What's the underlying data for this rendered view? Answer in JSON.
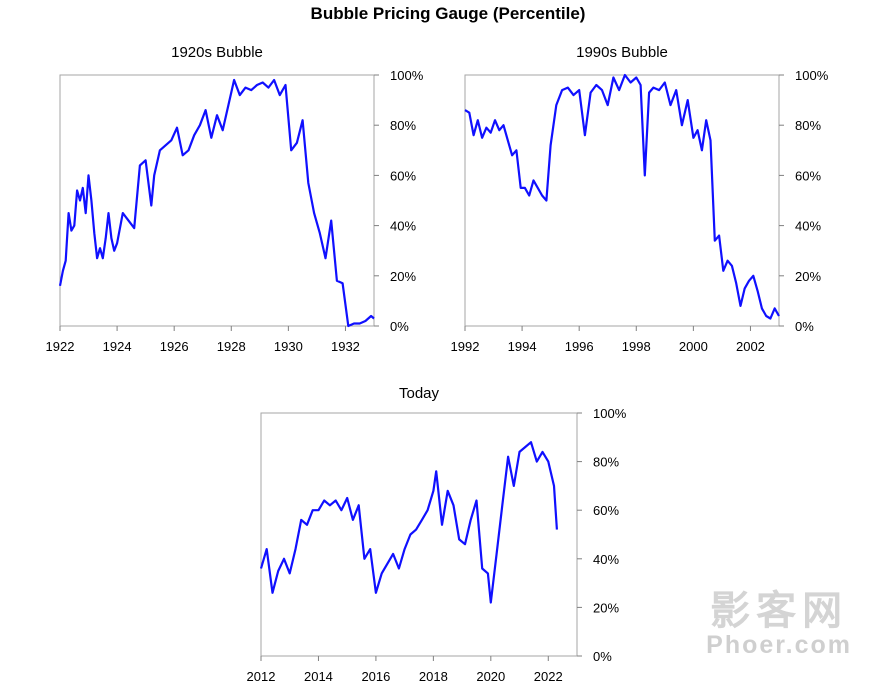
{
  "title": "Bubble Pricing Gauge (Percentile)",
  "watermark": {
    "line1": "影客网",
    "line2": "Phoer.com"
  },
  "colors": {
    "series": "#1010ff",
    "frame": "#a6a6a6"
  },
  "chart_data": [
    {
      "type": "line",
      "title": "1920s Bubble",
      "xlabel": "",
      "ylabel": "",
      "xlim": [
        1922,
        1933
      ],
      "ylim": [
        0,
        100
      ],
      "x_ticks": [
        "1922",
        "1924",
        "1926",
        "1928",
        "1930",
        "1932"
      ],
      "y_ticks": [
        "0%",
        "20%",
        "40%",
        "60%",
        "80%",
        "100%"
      ],
      "series": [
        {
          "name": "Percentile",
          "x": [
            1922.0,
            1922.1,
            1922.2,
            1922.3,
            1922.4,
            1922.5,
            1922.6,
            1922.7,
            1922.8,
            1922.9,
            1923.0,
            1923.1,
            1923.2,
            1923.3,
            1923.4,
            1923.5,
            1923.6,
            1923.7,
            1923.8,
            1923.9,
            1924.0,
            1924.2,
            1924.4,
            1924.6,
            1924.8,
            1925.0,
            1925.2,
            1925.3,
            1925.5,
            1925.7,
            1925.9,
            1926.1,
            1926.3,
            1926.5,
            1926.7,
            1926.9,
            1927.1,
            1927.3,
            1927.5,
            1927.7,
            1927.9,
            1928.1,
            1928.3,
            1928.5,
            1928.7,
            1928.9,
            1929.1,
            1929.3,
            1929.5,
            1929.7,
            1929.9,
            1930.1,
            1930.3,
            1930.5,
            1930.7,
            1930.9,
            1931.1,
            1931.3,
            1931.5,
            1931.7,
            1931.9,
            1932.1,
            1932.3,
            1932.5,
            1932.7,
            1932.9,
            1933.0
          ],
          "y": [
            16,
            22,
            26,
            45,
            38,
            40,
            54,
            50,
            55,
            45,
            60,
            50,
            37,
            27,
            31,
            27,
            35,
            45,
            35,
            30,
            33,
            45,
            42,
            39,
            64,
            66,
            48,
            60,
            70,
            72,
            74,
            79,
            68,
            70,
            76,
            80,
            86,
            75,
            84,
            78,
            88,
            98,
            92,
            95,
            94,
            96,
            97,
            95,
            98,
            92,
            96,
            70,
            73,
            82,
            57,
            45,
            37,
            27,
            42,
            18,
            17,
            0,
            1,
            1,
            2,
            4,
            3
          ]
        }
      ]
    },
    {
      "type": "line",
      "title": "1990s Bubble",
      "xlabel": "",
      "ylabel": "",
      "xlim": [
        1992,
        2003
      ],
      "ylim": [
        0,
        100
      ],
      "x_ticks": [
        "1992",
        "1994",
        "1996",
        "1998",
        "2000",
        "2002"
      ],
      "y_ticks": [
        "0%",
        "20%",
        "40%",
        "60%",
        "80%",
        "100%"
      ],
      "series": [
        {
          "name": "Percentile",
          "x": [
            1992.0,
            1992.15,
            1992.3,
            1992.45,
            1992.6,
            1992.75,
            1992.9,
            1993.05,
            1993.2,
            1993.35,
            1993.5,
            1993.65,
            1993.8,
            1993.95,
            1994.1,
            1994.25,
            1994.4,
            1994.55,
            1994.7,
            1994.85,
            1995.0,
            1995.2,
            1995.4,
            1995.6,
            1995.8,
            1996.0,
            1996.2,
            1996.4,
            1996.6,
            1996.8,
            1997.0,
            1997.2,
            1997.4,
            1997.6,
            1997.8,
            1998.0,
            1998.15,
            1998.3,
            1998.45,
            1998.6,
            1998.8,
            1999.0,
            1999.2,
            1999.4,
            1999.6,
            1999.8,
            2000.0,
            2000.15,
            2000.3,
            2000.45,
            2000.6,
            2000.75,
            2000.9,
            2001.05,
            2001.2,
            2001.35,
            2001.5,
            2001.65,
            2001.8,
            2001.95,
            2002.1,
            2002.25,
            2002.4,
            2002.55,
            2002.7,
            2002.85,
            2003.0
          ],
          "y": [
            86,
            85,
            76,
            82,
            75,
            79,
            77,
            82,
            78,
            80,
            74,
            68,
            70,
            55,
            55,
            52,
            58,
            55,
            52,
            50,
            72,
            88,
            94,
            95,
            92,
            94,
            76,
            93,
            96,
            94,
            88,
            99,
            94,
            100,
            97,
            99,
            96,
            60,
            93,
            95,
            94,
            97,
            88,
            94,
            80,
            90,
            75,
            78,
            70,
            82,
            74,
            34,
            36,
            22,
            26,
            24,
            17,
            8,
            15,
            18,
            20,
            14,
            7,
            4,
            3,
            7,
            4
          ]
        }
      ]
    },
    {
      "type": "line",
      "title": "Today",
      "xlabel": "",
      "ylabel": "",
      "xlim": [
        2012,
        2023
      ],
      "ylim": [
        0,
        100
      ],
      "x_ticks": [
        "2012",
        "2014",
        "2016",
        "2018",
        "2020",
        "2022"
      ],
      "y_ticks": [
        "0%",
        "20%",
        "40%",
        "60%",
        "80%",
        "100%"
      ],
      "series": [
        {
          "name": "Percentile",
          "x": [
            2012.0,
            2012.2,
            2012.4,
            2012.6,
            2012.8,
            2013.0,
            2013.2,
            2013.4,
            2013.6,
            2013.8,
            2014.0,
            2014.2,
            2014.4,
            2014.6,
            2014.8,
            2015.0,
            2015.2,
            2015.4,
            2015.6,
            2015.8,
            2016.0,
            2016.2,
            2016.4,
            2016.6,
            2016.8,
            2017.0,
            2017.2,
            2017.4,
            2017.6,
            2017.8,
            2018.0,
            2018.1,
            2018.3,
            2018.5,
            2018.7,
            2018.9,
            2019.1,
            2019.3,
            2019.5,
            2019.7,
            2019.9,
            2020.0,
            2020.2,
            2020.4,
            2020.6,
            2020.8,
            2021.0,
            2021.2,
            2021.4,
            2021.6,
            2021.8,
            2022.0,
            2022.2,
            2022.3
          ],
          "y": [
            36,
            44,
            26,
            35,
            40,
            34,
            44,
            56,
            54,
            60,
            60,
            64,
            62,
            64,
            60,
            65,
            56,
            62,
            40,
            44,
            26,
            34,
            38,
            42,
            36,
            44,
            50,
            52,
            56,
            60,
            68,
            76,
            54,
            68,
            62,
            48,
            46,
            56,
            64,
            36,
            34,
            22,
            42,
            62,
            82,
            70,
            84,
            86,
            88,
            80,
            84,
            80,
            70,
            52
          ]
        }
      ]
    }
  ]
}
